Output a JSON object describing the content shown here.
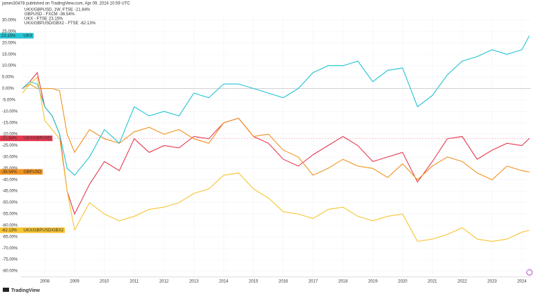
{
  "header": "james30478 published on TradingView.com, Apr 09, 2024 10:59 UTC",
  "footer": "TradingView",
  "chart_data": {
    "type": "line",
    "x": [
      2007.25,
      2007.5,
      2007.75,
      2008.0,
      2008.25,
      2008.5,
      2008.75,
      2009.0,
      2009.5,
      2010.0,
      2010.5,
      2011.0,
      2011.5,
      2012.0,
      2012.5,
      2013.0,
      2013.5,
      2014.0,
      2014.5,
      2015.0,
      2015.5,
      2016.0,
      2016.5,
      2017.0,
      2017.5,
      2018.0,
      2018.5,
      2019.0,
      2019.5,
      2020.0,
      2020.5,
      2021.0,
      2021.5,
      2022.0,
      2022.5,
      2023.0,
      2023.5,
      2024.0,
      2024.25
    ],
    "xlim": [
      2007.2,
      2024.3
    ],
    "xticks": [
      2008,
      2009,
      2010,
      2011,
      2012,
      2013,
      2014,
      2015,
      2016,
      2017,
      2018,
      2019,
      2020,
      2021,
      2022,
      2023,
      2024
    ],
    "ylim": [
      -82,
      32
    ],
    "yticks": [
      {
        "value": 30,
        "label": "30.00%"
      },
      {
        "value": 25,
        "label": "25.00%"
      },
      {
        "value": 20,
        "label": "20.00%"
      },
      {
        "value": 15,
        "label": "15.00%"
      },
      {
        "value": 10,
        "label": "10.00%"
      },
      {
        "value": 5,
        "label": "5.00%"
      },
      {
        "value": 0,
        "label": "0.00%"
      },
      {
        "value": -5,
        "label": "-5.00%"
      },
      {
        "value": -10,
        "label": "-10.00%"
      },
      {
        "value": -15,
        "label": "-15.00%"
      },
      {
        "value": -20,
        "label": "-20.00%"
      },
      {
        "value": -25,
        "label": "-25.00%"
      },
      {
        "value": -30,
        "label": "-30.00%"
      },
      {
        "value": -35,
        "label": "-35.00%"
      },
      {
        "value": -40,
        "label": "-40.00%"
      },
      {
        "value": -45,
        "label": "-45.00%"
      },
      {
        "value": -50,
        "label": "-50.00%"
      },
      {
        "value": -55,
        "label": "-55.00%"
      },
      {
        "value": -60,
        "label": "-60.00%"
      },
      {
        "value": -65,
        "label": "-65.00%"
      },
      {
        "value": -70,
        "label": "-70.00%"
      },
      {
        "value": -75,
        "label": "-75.00%"
      },
      {
        "value": -80,
        "label": "-80.00%"
      }
    ],
    "grid": true,
    "series": [
      {
        "name": "UKX/GBPUSD, 1W, FTSE",
        "tag": "UKX/GBPUSD",
        "color": "#e53950",
        "last_value_label": "-21.84%",
        "values": [
          0,
          3,
          7,
          -8,
          -12,
          -20,
          -45,
          -55,
          -42,
          -32,
          -36,
          -22,
          -28,
          -25,
          -26,
          -21,
          -22,
          -15,
          -13,
          -21,
          -24,
          -31,
          -34,
          -29,
          -25,
          -21,
          -25,
          -32,
          -30,
          -28,
          -41,
          -32,
          -22,
          -21,
          -31,
          -27,
          -24,
          -25,
          -21.84
        ]
      },
      {
        "name": "GBPUSD - FXCM",
        "tag": "GBPUSD",
        "color": "#f0921f",
        "last_value_label": "-36.54%",
        "values": [
          0,
          2,
          0,
          0,
          0,
          -1,
          -20,
          -28,
          -18,
          -22,
          -24,
          -19,
          -17,
          -20,
          -18,
          -22,
          -24,
          -15,
          -13,
          -21,
          -20,
          -27,
          -30,
          -38,
          -35,
          -31,
          -34,
          -35,
          -39,
          -33,
          -40,
          -34,
          -30,
          -32,
          -37,
          -40,
          -34,
          -36,
          -36.54
        ]
      },
      {
        "name": "UKX - FTSE",
        "tag": "UKX",
        "color": "#22c3d2",
        "last_value_label": "23.15%",
        "values": [
          0,
          3,
          2,
          -8,
          -12,
          -20,
          -35,
          -38,
          -30,
          -18,
          -24,
          -8,
          -12,
          -10,
          -12,
          -2,
          -4,
          2,
          2,
          0,
          -2,
          -4,
          0,
          7,
          10,
          10,
          12,
          3,
          8,
          9,
          -8,
          -3,
          6,
          12,
          14,
          17,
          15,
          17,
          23.15
        ]
      },
      {
        "name": "UKX/GBPUSD/GBX2 - FTSE",
        "tag": "UKX/GBPUSD/GBX2",
        "color": "#f7c531",
        "last_value_label": "-62.13%",
        "values": [
          -2,
          2,
          5,
          -14,
          -18,
          -22,
          -45,
          -62,
          -50,
          -55,
          -58,
          -56,
          -53,
          -52,
          -50,
          -46,
          -44,
          -38,
          -37,
          -44,
          -48,
          -54,
          -55,
          -57,
          -53,
          -52,
          -56,
          -58,
          -56,
          -55,
          -67,
          -66,
          -64,
          -61,
          -66,
          -67,
          -66,
          -63,
          -62.13
        ]
      }
    ]
  }
}
